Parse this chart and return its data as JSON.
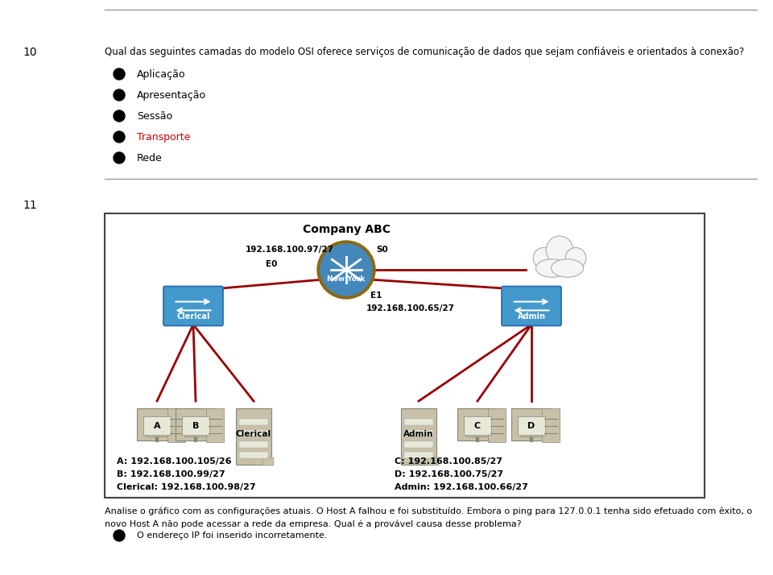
{
  "bg_color": "#ffffff",
  "q10_number": "10",
  "q10_question": "Qual das seguintes camadas do modelo OSI oferece serviços de comunicação de dados que sejam confiáveis e orientados à conexão?",
  "options": [
    {
      "text": "Aplicação",
      "color": "#000000"
    },
    {
      "text": "Apresentação",
      "color": "#000000"
    },
    {
      "text": "Sessão",
      "color": "#000000"
    },
    {
      "text": "Transporte",
      "color": "#cc0000"
    },
    {
      "text": "Rede",
      "color": "#000000"
    }
  ],
  "q11_number": "11",
  "q11_text1": "Analise o gráfico com as configurações atuais. O Host A falhou e foi substituído. Embora o ping para 127.0.0.1 tenha sido efetuado com êxito, o",
  "q11_text2": "novo Host A não pode acessar a rede da empresa. Qual é a provável causa desse problema?",
  "q11_answer": "O endereço IP foi inserido incorretamente.",
  "line_color": "#999999",
  "red_line_color": "#990000",
  "switch_color": "#4499cc",
  "switch_border": "#2266aa",
  "router_outer": "#8B5A2B",
  "router_inner": "#4488bb",
  "cloud_fill": "#f5f5f5",
  "cloud_edge": "#aaaaaa",
  "box_edge": "#444444",
  "device_fill": "#c8c0a8",
  "device_edge": "#888877",
  "screen_fill": "#e8e8d8",
  "ip_label_color": "#000000",
  "company_title": "Company ABC",
  "label_97": "192.168.100.97/27",
  "label_E0": "E0",
  "label_S0": "S0",
  "label_E1": "E1",
  "label_65": "192.168.100.65/27",
  "label_A_ip": "A: 192.168.100.105/26",
  "label_B_ip": "B: 192.168.100.99/27",
  "label_Cl_ip": "Clerical: 192.168.100.98/27",
  "label_C_ip": "C: 192.168.100.85/27",
  "label_D_ip": "D: 192.168.100.75/27",
  "label_Ad_ip": "Admin: 192.168.100.66/27"
}
